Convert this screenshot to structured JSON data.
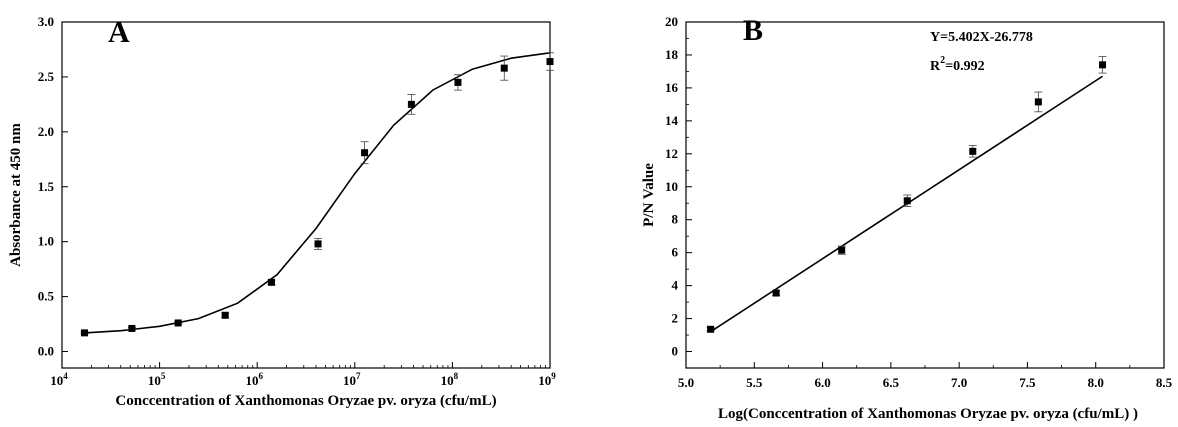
{
  "chart_data": [
    {
      "type": "scatter",
      "panel_label": "A",
      "title": "",
      "xlabel": "Conccentration of Xanthomonas Oryzae pv. oryza (cfu/mL)",
      "ylabel": "Absorbance at 450 nm",
      "x_scale": "log",
      "xlim": [
        10000,
        1000000000
      ],
      "ylim": [
        -0.15,
        3.0
      ],
      "x_tick_exponents": [
        "4",
        "5",
        "6",
        "7",
        "8",
        "9"
      ],
      "y_ticks": [
        "0.0",
        "0.5",
        "1.0",
        "1.5",
        "2.0",
        "2.5",
        "3.0"
      ],
      "series": [
        {
          "x": [
            17000,
            52000,
            155000,
            470000,
            1400000,
            4200000,
            12600000,
            38000000,
            114000000,
            340000000,
            1000000000
          ],
          "y": [
            0.17,
            0.21,
            0.26,
            0.33,
            0.63,
            0.98,
            1.81,
            2.25,
            2.45,
            2.58,
            2.64
          ],
          "error": [
            0.01,
            0.01,
            0.01,
            0.02,
            0.02,
            0.05,
            0.1,
            0.09,
            0.07,
            0.11,
            0.08
          ]
        }
      ],
      "fit": {
        "type": "sigmoidal",
        "x": [
          17000,
          40000,
          100000,
          250000,
          630000,
          1600000,
          4000000,
          10000000,
          25000000,
          63000000,
          160000000,
          400000000,
          1000000000
        ],
        "y": [
          0.17,
          0.19,
          0.23,
          0.3,
          0.44,
          0.7,
          1.12,
          1.62,
          2.06,
          2.38,
          2.57,
          2.67,
          2.72
        ]
      }
    },
    {
      "type": "scatter",
      "panel_label": "B",
      "title": "",
      "xlabel": "Log(Conccentration of Xanthomonas Oryzae pv. oryza (cfu/mL) )",
      "ylabel": "P/N Value",
      "xlim": [
        5.0,
        8.5
      ],
      "ylim": [
        -1.0,
        20.0
      ],
      "x_ticks": [
        "5.0",
        "5.5",
        "6.0",
        "6.5",
        "7.0",
        "7.5",
        "8.0",
        "8.5"
      ],
      "y_ticks": [
        "0",
        "2",
        "4",
        "6",
        "8",
        "10",
        "12",
        "14",
        "16",
        "18",
        "20"
      ],
      "equation": "Y=5.402X-26.778",
      "r2_prefix": "R",
      "r2_sup": "2",
      "r2_value": "=0.992",
      "series": [
        {
          "x": [
            5.18,
            5.66,
            6.14,
            6.62,
            7.1,
            7.58,
            8.05
          ],
          "y": [
            1.35,
            3.55,
            6.15,
            9.15,
            12.15,
            15.15,
            17.4
          ],
          "error": [
            0.1,
            0.15,
            0.25,
            0.35,
            0.35,
            0.6,
            0.5
          ]
        }
      ],
      "fit": {
        "type": "linear",
        "slope": 5.402,
        "intercept": -26.778,
        "x_range": [
          5.18,
          8.05
        ]
      }
    }
  ]
}
